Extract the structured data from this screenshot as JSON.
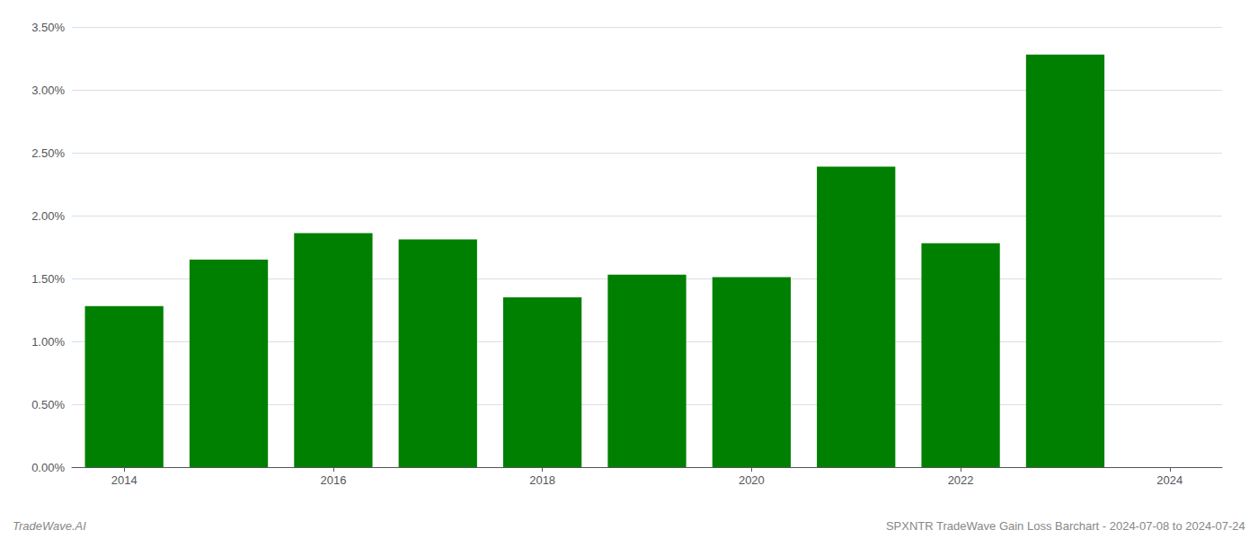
{
  "chart_data": {
    "type": "bar",
    "x": [
      2014,
      2015,
      2016,
      2017,
      2018,
      2019,
      2020,
      2021,
      2022,
      2023
    ],
    "values": [
      0.0128,
      0.0165,
      0.0186,
      0.0181,
      0.0135,
      0.0153,
      0.0151,
      0.0239,
      0.0178,
      0.0328
    ],
    "color": "#008000",
    "xlim": [
      2013.5,
      2024.5
    ],
    "xticks": [
      2014,
      2016,
      2018,
      2020,
      2022,
      2024
    ],
    "ylim": [
      0,
      0.035
    ],
    "yticks": [
      {
        "value": 0.0,
        "label": "0.00%"
      },
      {
        "value": 0.005,
        "label": "0.50%"
      },
      {
        "value": 0.01,
        "label": "1.00%"
      },
      {
        "value": 0.015,
        "label": "1.50%"
      },
      {
        "value": 0.02,
        "label": "2.00%"
      },
      {
        "value": 0.025,
        "label": "2.50%"
      },
      {
        "value": 0.03,
        "label": "3.00%"
      },
      {
        "value": 0.035,
        "label": "3.50%"
      }
    ],
    "grid": true,
    "annotations": [
      "TradeWave.AI",
      "SPXNTR TradeWave Gain Loss Barchart - 2024-07-08 to 2024-07-24"
    ]
  }
}
